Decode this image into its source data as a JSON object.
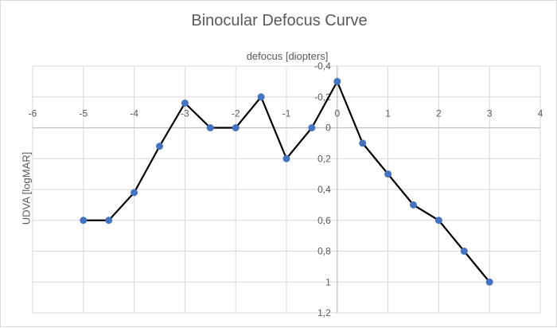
{
  "chart_data": {
    "type": "line",
    "title": "Binocular Defocus Curve",
    "xlabel": "defocus [diopters]",
    "ylabel": "UDVA [logMAR]",
    "xlim": [
      -6,
      4
    ],
    "ylim": [
      -0.4,
      1.2
    ],
    "y_inverted": true,
    "grid": true,
    "x_ticks": [
      "-6",
      "-5",
      "-4",
      "-3",
      "-2",
      "-1",
      "0",
      "1",
      "2",
      "3",
      "4"
    ],
    "y_ticks": [
      "-0,4",
      "-0,2",
      "0",
      "0,2",
      "0,4",
      "0,6",
      "0,8",
      "1",
      "1,2"
    ],
    "series": [
      {
        "name": "UDVA",
        "line_color": "#000000",
        "marker_color": "#4472c4",
        "x": [
          -5,
          -4.5,
          -4,
          -3.5,
          -3,
          -2.5,
          -2,
          -1.5,
          -1,
          -0.5,
          0,
          0.5,
          1,
          1.5,
          2,
          2.5,
          3
        ],
        "y": [
          0.6,
          0.6,
          0.42,
          0.12,
          -0.16,
          0,
          0,
          -0.2,
          0.2,
          0,
          -0.3,
          0.1,
          0.3,
          0.5,
          0.6,
          0.8,
          1.0
        ]
      }
    ]
  }
}
